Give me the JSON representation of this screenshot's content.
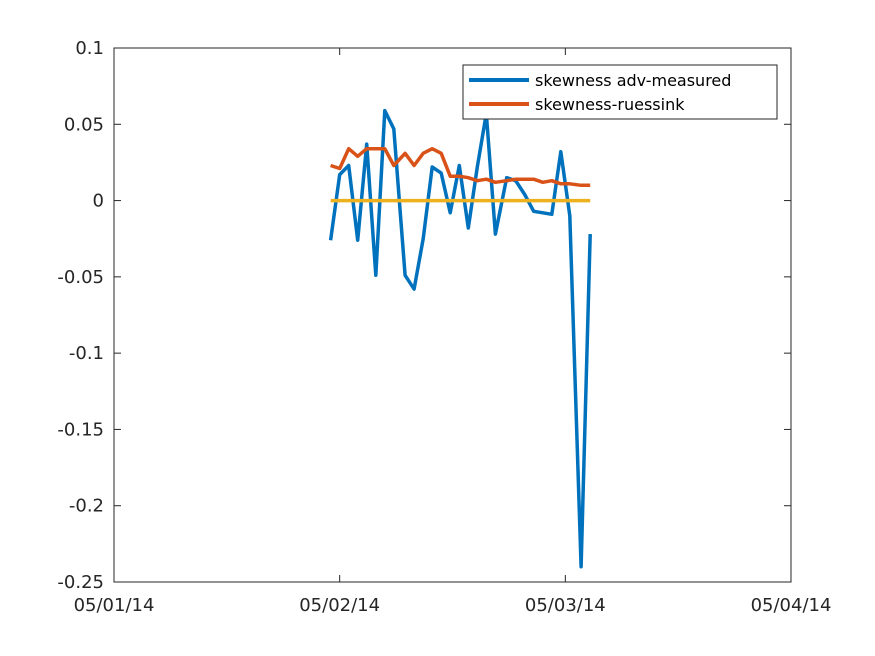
{
  "colors": {
    "series_measured": "#0072BD",
    "series_ruessink": "#D95319",
    "zero_line": "#EDB120",
    "axis": "#262626",
    "background": "#ffffff"
  },
  "chart_data": {
    "type": "line",
    "title": "",
    "xlabel": "",
    "ylabel": "",
    "x_unit": "days",
    "xlim": [
      0,
      3
    ],
    "ylim": [
      -0.25,
      0.1
    ],
    "grid": false,
    "legend_placement": "top-right",
    "x_ticks": [
      {
        "value": 0,
        "label": "05/01/14"
      },
      {
        "value": 1,
        "label": "05/02/14"
      },
      {
        "value": 2,
        "label": "05/03/14"
      },
      {
        "value": 3,
        "label": "05/04/14"
      }
    ],
    "y_ticks": [
      {
        "value": 0.1,
        "label": "0.1"
      },
      {
        "value": 0.05,
        "label": "0.05"
      },
      {
        "value": 0,
        "label": "0"
      },
      {
        "value": -0.05,
        "label": "-0.05"
      },
      {
        "value": -0.1,
        "label": "-0.1"
      },
      {
        "value": -0.15,
        "label": "-0.15"
      },
      {
        "value": -0.2,
        "label": "-0.2"
      },
      {
        "value": -0.25,
        "label": "-0.25"
      }
    ],
    "series": [
      {
        "name": "skewness adv-measured",
        "color_key": "series_measured",
        "in_legend": true,
        "points": [
          [
            0.96,
            -0.026
          ],
          [
            1.0,
            0.017
          ],
          [
            1.04,
            0.023
          ],
          [
            1.08,
            -0.026
          ],
          [
            1.12,
            0.037
          ],
          [
            1.16,
            -0.049
          ],
          [
            1.2,
            0.059
          ],
          [
            1.24,
            0.047
          ],
          [
            1.29,
            -0.049
          ],
          [
            1.33,
            -0.058
          ],
          [
            1.37,
            -0.025
          ],
          [
            1.41,
            0.022
          ],
          [
            1.45,
            0.018
          ],
          [
            1.49,
            -0.008
          ],
          [
            1.53,
            0.023
          ],
          [
            1.57,
            -0.018
          ],
          [
            1.61,
            0.022
          ],
          [
            1.65,
            0.057
          ],
          [
            1.69,
            -0.022
          ],
          [
            1.74,
            0.015
          ],
          [
            1.78,
            0.013
          ],
          [
            1.82,
            0.004
          ],
          [
            1.86,
            -0.007
          ],
          [
            1.9,
            -0.008
          ],
          [
            1.94,
            -0.009
          ],
          [
            1.98,
            0.032
          ],
          [
            2.02,
            -0.01
          ],
          [
            2.07,
            -0.24
          ],
          [
            2.11,
            -0.022
          ]
        ]
      },
      {
        "name": "skewness-ruessink",
        "color_key": "series_ruessink",
        "in_legend": true,
        "points": [
          [
            0.96,
            0.023
          ],
          [
            1.0,
            0.021
          ],
          [
            1.04,
            0.034
          ],
          [
            1.08,
            0.029
          ],
          [
            1.12,
            0.034
          ],
          [
            1.16,
            0.034
          ],
          [
            1.2,
            0.034
          ],
          [
            1.24,
            0.023
          ],
          [
            1.29,
            0.031
          ],
          [
            1.33,
            0.023
          ],
          [
            1.37,
            0.031
          ],
          [
            1.41,
            0.034
          ],
          [
            1.45,
            0.031
          ],
          [
            1.49,
            0.016
          ],
          [
            1.53,
            0.016
          ],
          [
            1.57,
            0.015
          ],
          [
            1.61,
            0.013
          ],
          [
            1.65,
            0.014
          ],
          [
            1.69,
            0.012
          ],
          [
            1.74,
            0.013
          ],
          [
            1.78,
            0.014
          ],
          [
            1.82,
            0.014
          ],
          [
            1.86,
            0.014
          ],
          [
            1.9,
            0.012
          ],
          [
            1.94,
            0.013
          ],
          [
            1.98,
            0.011
          ],
          [
            2.02,
            0.011
          ],
          [
            2.07,
            0.01
          ],
          [
            2.11,
            0.01
          ]
        ]
      },
      {
        "color_key": "zero_line",
        "in_legend": false,
        "points": [
          [
            0.96,
            0
          ],
          [
            2.11,
            0
          ]
        ]
      }
    ]
  }
}
